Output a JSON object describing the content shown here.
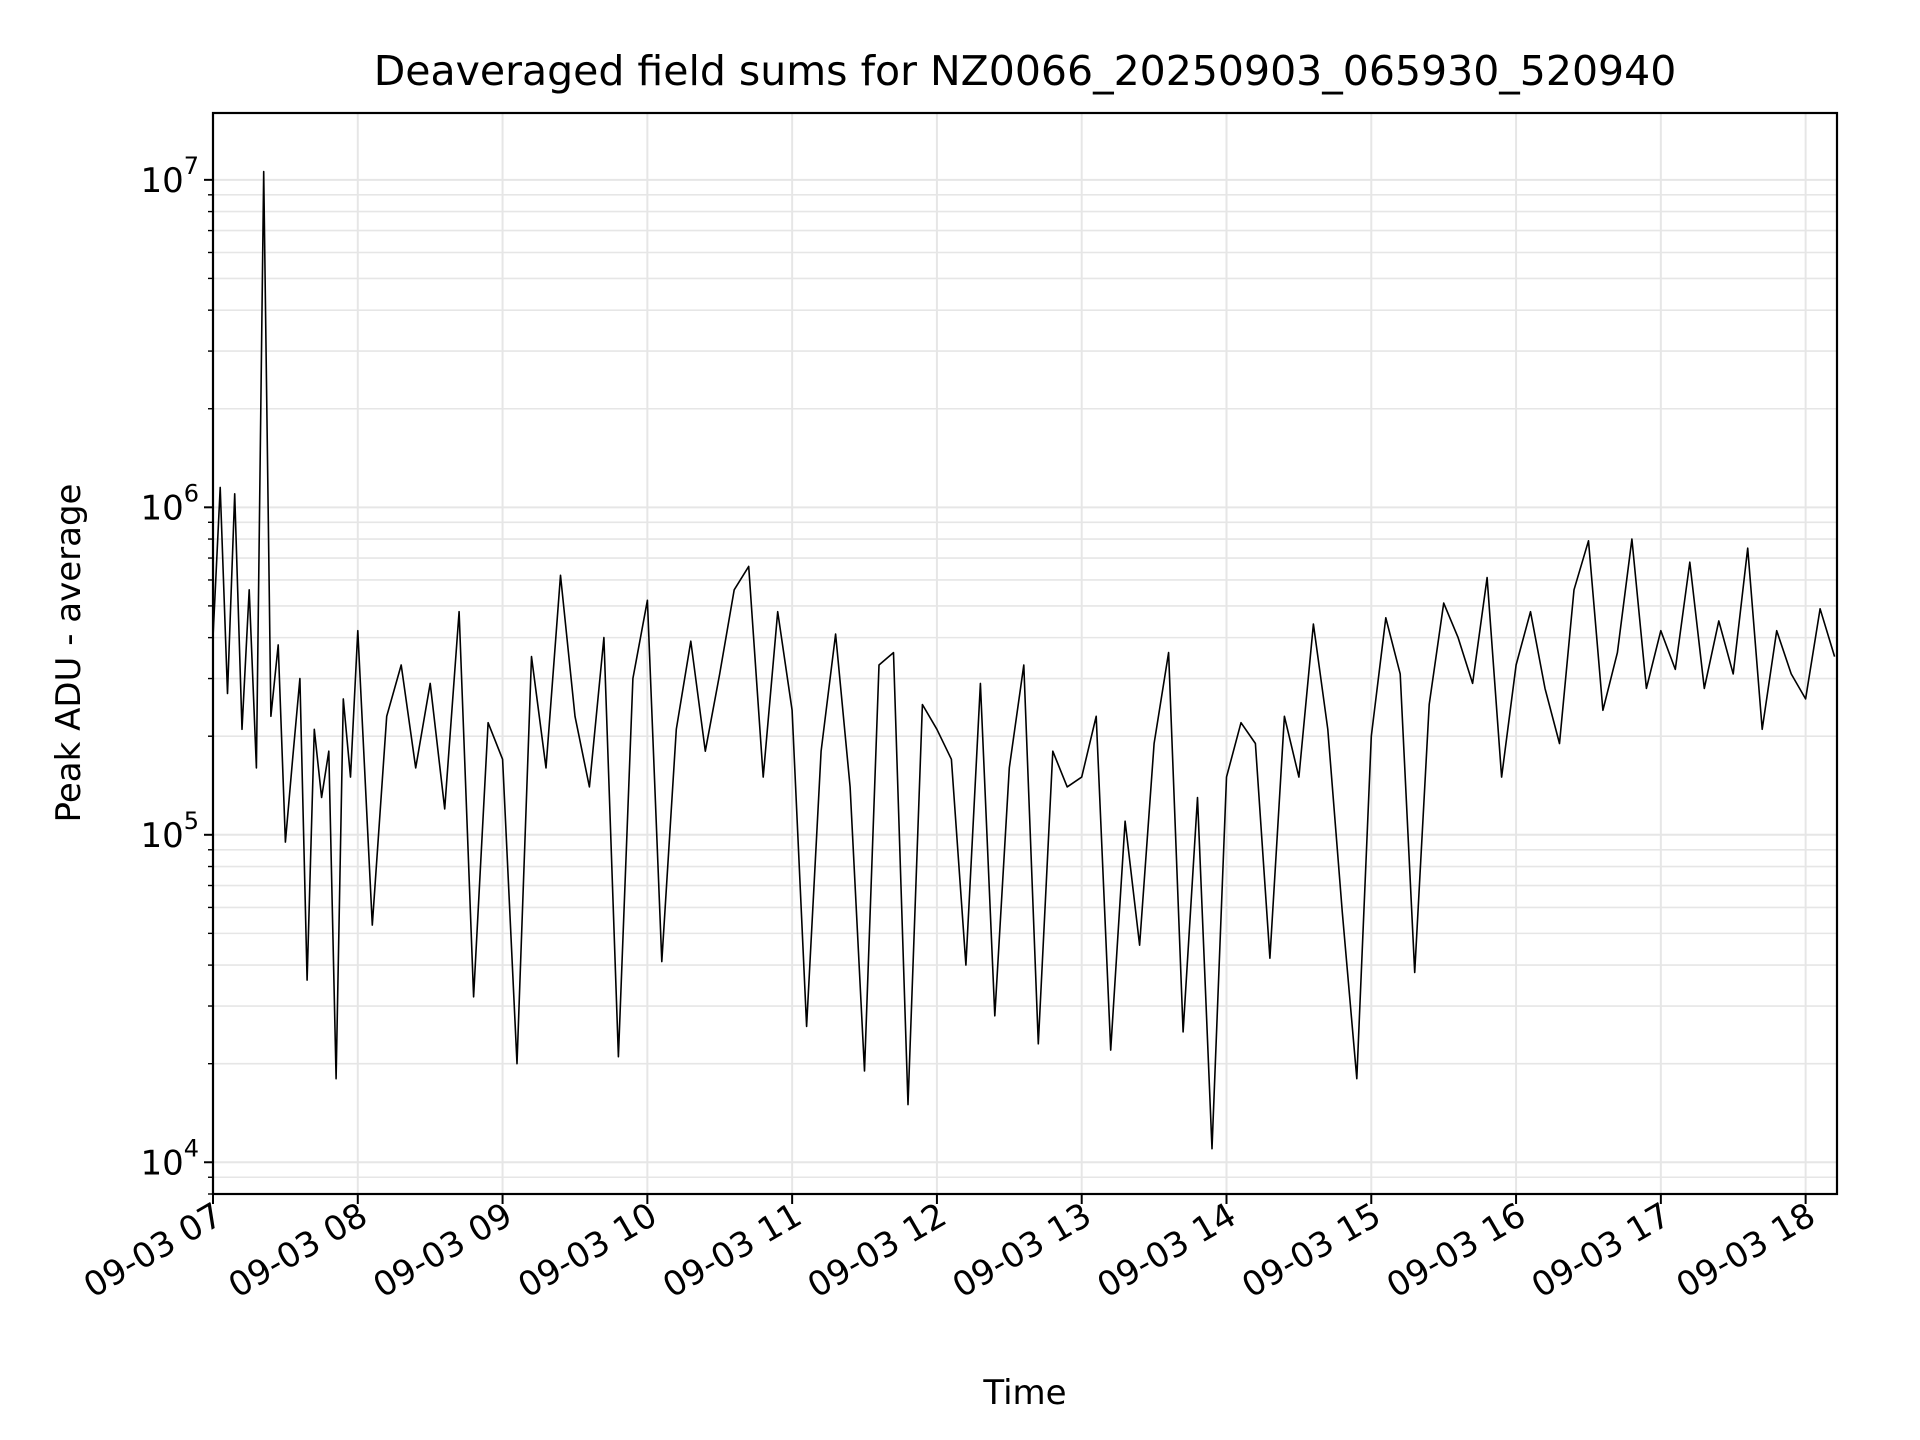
{
  "chart_data": {
    "type": "line",
    "title": "Deaveraged field sums for NZ0066_20250903_065930_520940",
    "xlabel": "Time",
    "ylabel": "Peak ADU - average",
    "yscale": "log",
    "ylim": [
      8000,
      16000000
    ],
    "xlim": [
      "2025-09-03 07:00",
      "2025-09-03 18:13"
    ],
    "grid": true,
    "line_color": "#000000",
    "grid_color": "#e6e6e6",
    "x_ticks": [
      {
        "value": "2025-09-03 07:00",
        "label": "09-03 07"
      },
      {
        "value": "2025-09-03 08:00",
        "label": "09-03 08"
      },
      {
        "value": "2025-09-03 09:00",
        "label": "09-03 09"
      },
      {
        "value": "2025-09-03 10:00",
        "label": "09-03 10"
      },
      {
        "value": "2025-09-03 11:00",
        "label": "09-03 11"
      },
      {
        "value": "2025-09-03 12:00",
        "label": "09-03 12"
      },
      {
        "value": "2025-09-03 13:00",
        "label": "09-03 13"
      },
      {
        "value": "2025-09-03 14:00",
        "label": "09-03 14"
      },
      {
        "value": "2025-09-03 15:00",
        "label": "09-03 15"
      },
      {
        "value": "2025-09-03 16:00",
        "label": "09-03 16"
      },
      {
        "value": "2025-09-03 17:00",
        "label": "09-03 17"
      },
      {
        "value": "2025-09-03 18:00",
        "label": "09-03 18"
      }
    ],
    "y_ticks": [
      {
        "value": 10000,
        "base": "10",
        "exp": "4"
      },
      {
        "value": 100000,
        "base": "10",
        "exp": "5"
      },
      {
        "value": 1000000,
        "base": "10",
        "exp": "6"
      },
      {
        "value": 10000000,
        "base": "10",
        "exp": "7"
      }
    ],
    "x": [
      "2025-09-03 07:00",
      "2025-09-03 07:03",
      "2025-09-03 07:06",
      "2025-09-03 07:09",
      "2025-09-03 07:12",
      "2025-09-03 07:15",
      "2025-09-03 07:18",
      "2025-09-03 07:21",
      "2025-09-03 07:24",
      "2025-09-03 07:27",
      "2025-09-03 07:30",
      "2025-09-03 07:33",
      "2025-09-03 07:36",
      "2025-09-03 07:39",
      "2025-09-03 07:42",
      "2025-09-03 07:45",
      "2025-09-03 07:48",
      "2025-09-03 07:51",
      "2025-09-03 07:54",
      "2025-09-03 07:57",
      "2025-09-03 08:00",
      "2025-09-03 08:06",
      "2025-09-03 08:12",
      "2025-09-03 08:18",
      "2025-09-03 08:24",
      "2025-09-03 08:30",
      "2025-09-03 08:36",
      "2025-09-03 08:42",
      "2025-09-03 08:48",
      "2025-09-03 08:54",
      "2025-09-03 09:00",
      "2025-09-03 09:06",
      "2025-09-03 09:12",
      "2025-09-03 09:18",
      "2025-09-03 09:24",
      "2025-09-03 09:30",
      "2025-09-03 09:36",
      "2025-09-03 09:42",
      "2025-09-03 09:48",
      "2025-09-03 09:54",
      "2025-09-03 10:00",
      "2025-09-03 10:06",
      "2025-09-03 10:12",
      "2025-09-03 10:18",
      "2025-09-03 10:24",
      "2025-09-03 10:30",
      "2025-09-03 10:36",
      "2025-09-03 10:42",
      "2025-09-03 10:48",
      "2025-09-03 10:54",
      "2025-09-03 11:00",
      "2025-09-03 11:06",
      "2025-09-03 11:12",
      "2025-09-03 11:18",
      "2025-09-03 11:24",
      "2025-09-03 11:30",
      "2025-09-03 11:36",
      "2025-09-03 11:42",
      "2025-09-03 11:48",
      "2025-09-03 11:54",
      "2025-09-03 12:00",
      "2025-09-03 12:06",
      "2025-09-03 12:12",
      "2025-09-03 12:18",
      "2025-09-03 12:24",
      "2025-09-03 12:30",
      "2025-09-03 12:36",
      "2025-09-03 12:42",
      "2025-09-03 12:48",
      "2025-09-03 12:54",
      "2025-09-03 13:00",
      "2025-09-03 13:06",
      "2025-09-03 13:12",
      "2025-09-03 13:18",
      "2025-09-03 13:24",
      "2025-09-03 13:30",
      "2025-09-03 13:36",
      "2025-09-03 13:42",
      "2025-09-03 13:48",
      "2025-09-03 13:54",
      "2025-09-03 14:00",
      "2025-09-03 14:06",
      "2025-09-03 14:12",
      "2025-09-03 14:18",
      "2025-09-03 14:24",
      "2025-09-03 14:30",
      "2025-09-03 14:36",
      "2025-09-03 14:42",
      "2025-09-03 14:48",
      "2025-09-03 14:54",
      "2025-09-03 15:00",
      "2025-09-03 15:06",
      "2025-09-03 15:12",
      "2025-09-03 15:18",
      "2025-09-03 15:24",
      "2025-09-03 15:30",
      "2025-09-03 15:36",
      "2025-09-03 15:42",
      "2025-09-03 15:48",
      "2025-09-03 15:54",
      "2025-09-03 16:00",
      "2025-09-03 16:06",
      "2025-09-03 16:12",
      "2025-09-03 16:18",
      "2025-09-03 16:24",
      "2025-09-03 16:30",
      "2025-09-03 16:36",
      "2025-09-03 16:42",
      "2025-09-03 16:48",
      "2025-09-03 16:54",
      "2025-09-03 17:00",
      "2025-09-03 17:06",
      "2025-09-03 17:12",
      "2025-09-03 17:18",
      "2025-09-03 17:24",
      "2025-09-03 17:30",
      "2025-09-03 17:36",
      "2025-09-03 17:42",
      "2025-09-03 17:48",
      "2025-09-03 17:54",
      "2025-09-03 18:00",
      "2025-09-03 18:06",
      "2025-09-03 18:12"
    ],
    "series": [
      {
        "values": [
          400000,
          1150000,
          270000,
          1100000,
          210000,
          560000,
          160000,
          10600000,
          230000,
          380000,
          95000,
          170000,
          300000,
          36000,
          210000,
          130000,
          180000,
          18000,
          260000,
          150000,
          420000,
          53000,
          230000,
          330000,
          160000,
          290000,
          120000,
          480000,
          32000,
          220000,
          170000,
          20000,
          350000,
          160000,
          620000,
          230000,
          140000,
          400000,
          21000,
          300000,
          520000,
          41000,
          210000,
          390000,
          180000,
          310000,
          560000,
          660000,
          150000,
          480000,
          240000,
          26000,
          180000,
          410000,
          140000,
          19000,
          330000,
          360000,
          15000,
          250000,
          210000,
          170000,
          40000,
          290000,
          28000,
          160000,
          330000,
          23000,
          180000,
          140000,
          150000,
          230000,
          22000,
          110000,
          46000,
          190000,
          360000,
          25000,
          130000,
          11000,
          150000,
          220000,
          190000,
          42000,
          230000,
          150000,
          440000,
          210000,
          58000,
          18000,
          200000,
          460000,
          310000,
          38000,
          250000,
          510000,
          400000,
          290000,
          610000,
          150000,
          330000,
          480000,
          280000,
          190000,
          560000,
          790000,
          240000,
          360000,
          800000,
          280000,
          420000,
          320000,
          680000,
          280000,
          450000,
          310000,
          750000,
          210000,
          420000,
          310000,
          260000,
          490000,
          350000
        ]
      }
    ]
  }
}
